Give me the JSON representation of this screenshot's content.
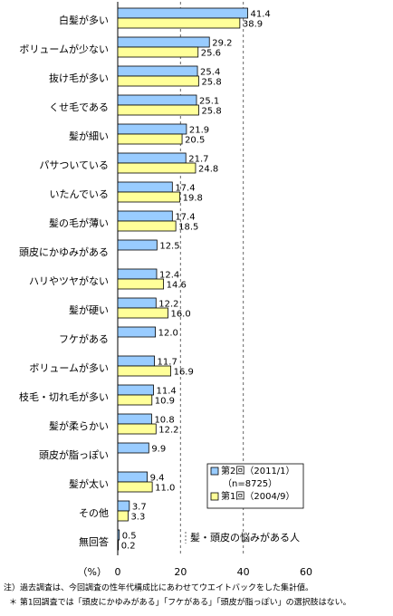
{
  "chart_data": {
    "type": "bar",
    "orientation": "horizontal",
    "categories": [
      "白髪が多い",
      "ボリュームが少ない",
      "抜け毛が多い",
      "くせ毛である",
      "髪が細い",
      "パサついている",
      "いたんでいる",
      "髪の毛が薄い",
      "頭皮にかゆみがある",
      "ハリやツヤがない",
      "髪が硬い",
      "フケがある",
      "ボリュームが多い",
      "枝毛・切れ毛が多い",
      "髪が柔らかい",
      "頭皮が脂っぽい",
      "髪が太い",
      "その他",
      "無回答"
    ],
    "series": [
      {
        "name": "第2回（2011/1）",
        "note": "（n=8725）",
        "color": "#99ccff",
        "values": [
          41.4,
          29.2,
          25.4,
          25.1,
          21.9,
          21.7,
          17.4,
          17.4,
          12.5,
          12.4,
          12.2,
          12.0,
          11.7,
          11.4,
          10.8,
          9.9,
          9.4,
          3.7,
          0.5
        ],
        "value_labels": [
          "41.4",
          "29.2",
          "25.4",
          "25.1",
          "21.9",
          "21.7",
          "17.4",
          "17.4",
          "12.5",
          "12.4",
          "12.2",
          "12.0",
          "11.7",
          "11.4",
          "10.8",
          "9.9",
          "9.4",
          "3.7",
          "0.5"
        ]
      },
      {
        "name": "第1回（2004/9）",
        "color": "#ffff99",
        "values": [
          38.9,
          25.6,
          25.8,
          25.8,
          20.5,
          24.8,
          19.8,
          18.5,
          null,
          14.6,
          16.0,
          null,
          16.9,
          10.9,
          12.2,
          null,
          11.0,
          3.3,
          0.2
        ],
        "value_labels": [
          "38.9",
          "25.6",
          "25.8",
          "25.8",
          "20.5",
          "24.8",
          "19.8",
          "18.5",
          null,
          "14.6",
          "16.0",
          null,
          "16.9",
          "10.9",
          "12.2",
          null,
          "11.0",
          "3.3",
          "0.2"
        ]
      }
    ],
    "xlim": [
      0,
      60
    ],
    "xticks": [
      0,
      20,
      40,
      60
    ],
    "x_label": "（%）",
    "grid": true,
    "annotation": "髪・頭皮の悩みがある人",
    "footnotes": [
      "注）過去調査は、今回調査の性年代構成比にあわせてウエイトバックをした集計値。",
      "＊ 第1回調査では「頭皮にかゆみがある」「フケがある」「頭皮が脂っぽい」の選択肢はない。"
    ]
  }
}
